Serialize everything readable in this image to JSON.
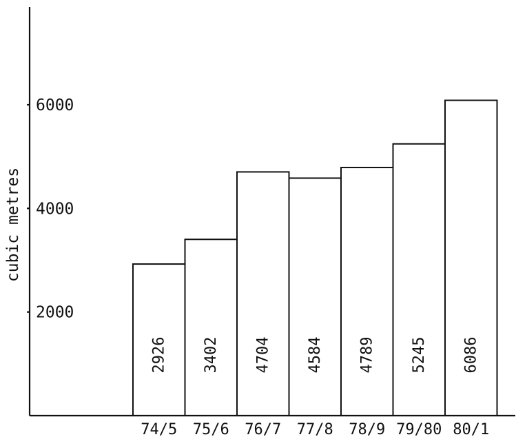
{
  "chart_data": {
    "type": "bar",
    "title": "",
    "xlabel": "",
    "ylabel": "cubic metres",
    "categories": [
      "74/5",
      "75/6",
      "76/7",
      "77/8",
      "78/9",
      "79/80",
      "80/1"
    ],
    "values": [
      2926,
      3402,
      4704,
      4584,
      4789,
      5245,
      6086
    ],
    "yticks": [
      2000,
      4000,
      6000
    ],
    "ylim": [
      0,
      8000
    ],
    "grid": false,
    "legend": "none",
    "bar_color": "#ffffff",
    "line_color": "#111111"
  }
}
